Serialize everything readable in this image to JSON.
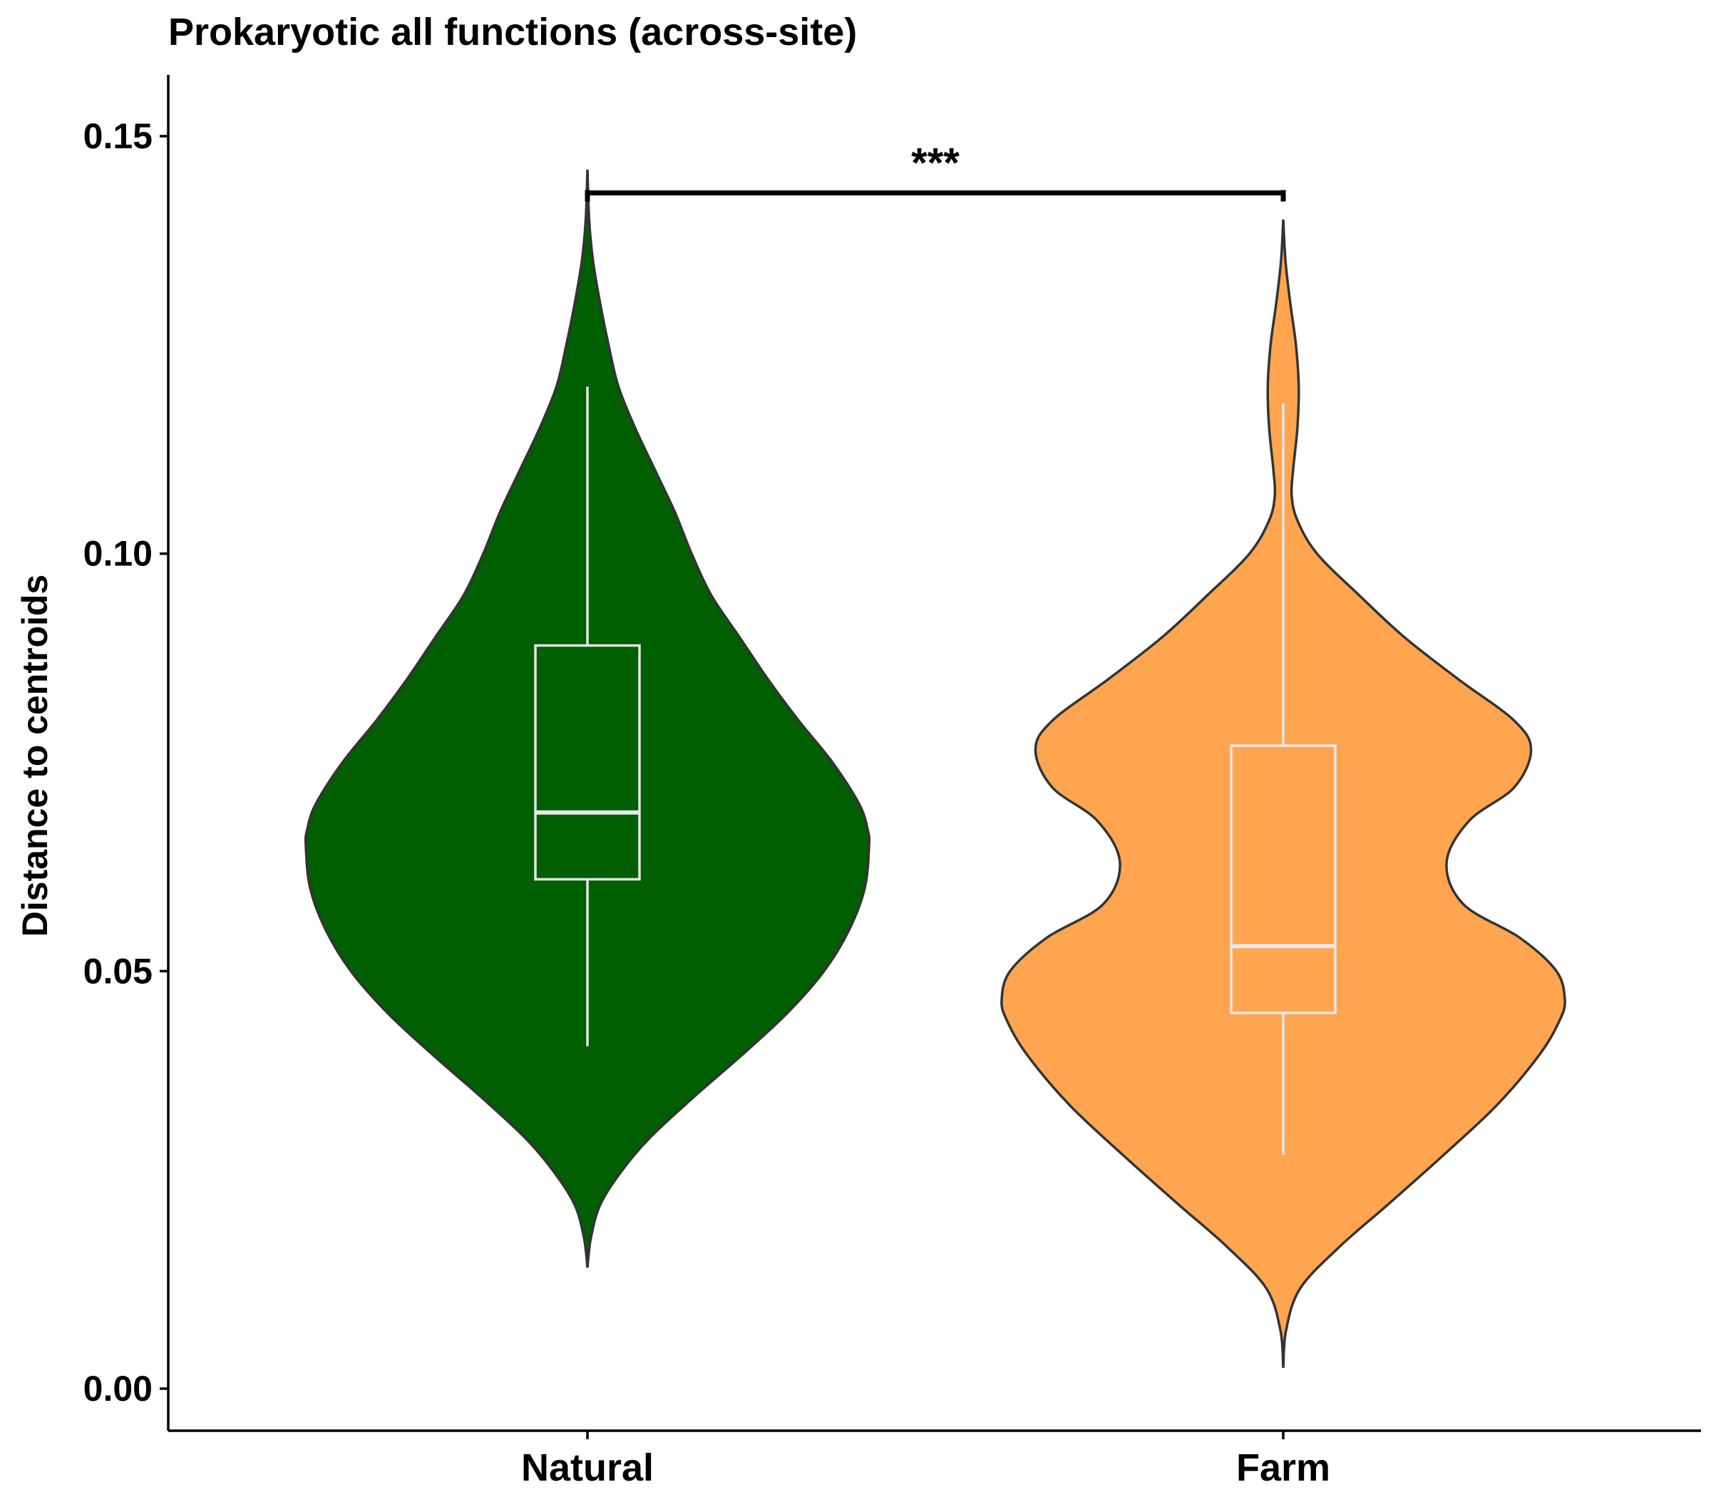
{
  "chart_data": {
    "type": "violin",
    "title": "Prokaryotic all functions (across-site)",
    "xlabel": "",
    "ylabel": "Distance to centroids",
    "ylim": [
      -0.005,
      0.157
    ],
    "yticks": [
      "0.00",
      "0.05",
      "0.10",
      "0.15"
    ],
    "ytick_values": [
      0.0,
      0.05,
      0.1,
      0.15
    ],
    "categories": [
      "Natural",
      "Farm"
    ],
    "grid": false,
    "legend": "none",
    "colors": {
      "Natural": "#005f00",
      "Farm": "#ffa54f",
      "outline": "#333333",
      "box": "#e8e8e8",
      "bracket": "#000000"
    },
    "series": [
      {
        "name": "Natural",
        "box": {
          "whisker_low": 0.041,
          "q1": 0.061,
          "median": 0.069,
          "q3": 0.089,
          "whisker_high": 0.12
        },
        "violin": {
          "y": [
            0.0145,
            0.018,
            0.022,
            0.026,
            0.03,
            0.035,
            0.04,
            0.045,
            0.05,
            0.055,
            0.06,
            0.065,
            0.067,
            0.07,
            0.075,
            0.08,
            0.085,
            0.09,
            0.095,
            0.1,
            0.105,
            0.11,
            0.115,
            0.12,
            0.125,
            0.13,
            0.135,
            0.14,
            0.146
          ],
          "width": [
            0.0,
            0.012,
            0.045,
            0.12,
            0.22,
            0.38,
            0.55,
            0.71,
            0.84,
            0.93,
            0.985,
            1.0,
            0.995,
            0.965,
            0.87,
            0.75,
            0.64,
            0.54,
            0.44,
            0.37,
            0.31,
            0.24,
            0.17,
            0.11,
            0.075,
            0.045,
            0.02,
            0.006,
            0.0
          ]
        }
      },
      {
        "name": "Farm",
        "box": {
          "whisker_low": 0.028,
          "q1": 0.045,
          "median": 0.053,
          "q3": 0.077,
          "whisker_high": 0.118
        },
        "violin": {
          "y": [
            0.0025,
            0.007,
            0.012,
            0.017,
            0.022,
            0.028,
            0.034,
            0.04,
            0.044,
            0.0465,
            0.05,
            0.054,
            0.058,
            0.063,
            0.068,
            0.072,
            0.0765,
            0.08,
            0.085,
            0.09,
            0.095,
            0.1,
            0.104,
            0.107,
            0.11,
            0.115,
            0.12,
            0.125,
            0.13,
            0.135,
            0.14
          ],
          "width": [
            0.0,
            0.01,
            0.06,
            0.2,
            0.37,
            0.57,
            0.76,
            0.91,
            0.98,
            1.0,
            0.97,
            0.84,
            0.64,
            0.58,
            0.66,
            0.82,
            0.88,
            0.82,
            0.62,
            0.43,
            0.27,
            0.12,
            0.05,
            0.03,
            0.035,
            0.05,
            0.055,
            0.045,
            0.025,
            0.008,
            0.0
          ]
        }
      }
    ],
    "annotations": [
      {
        "text": "***",
        "from": "Natural",
        "to": "Farm",
        "y": 0.1432
      }
    ]
  }
}
